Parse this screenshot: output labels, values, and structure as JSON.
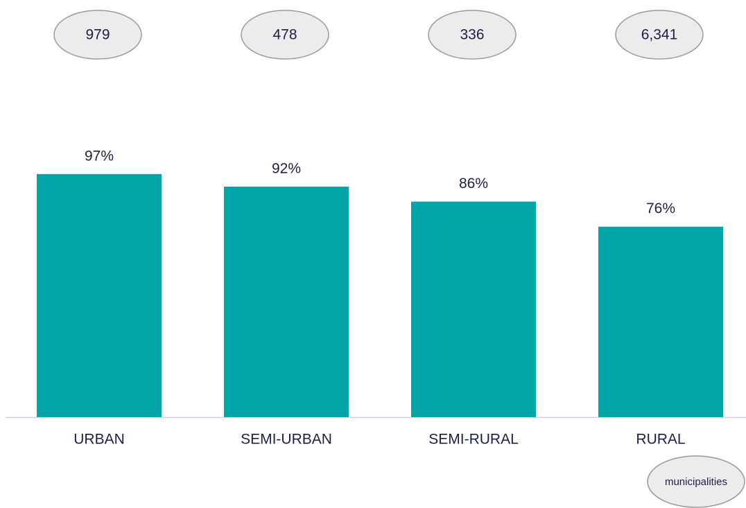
{
  "chart_data": {
    "type": "bar",
    "categories": [
      "URBAN",
      "SEMI-URBAN",
      "SEMI-RURAL",
      "RURAL"
    ],
    "values": [
      97,
      92,
      86,
      76
    ],
    "value_labels": [
      "97%",
      "92%",
      "86%",
      "76%"
    ],
    "color": "#00a5a8",
    "ylim": [
      0,
      100
    ],
    "counts": [
      "979",
      "478",
      "336",
      "6,341"
    ],
    "counts_unit": "municipalities"
  }
}
